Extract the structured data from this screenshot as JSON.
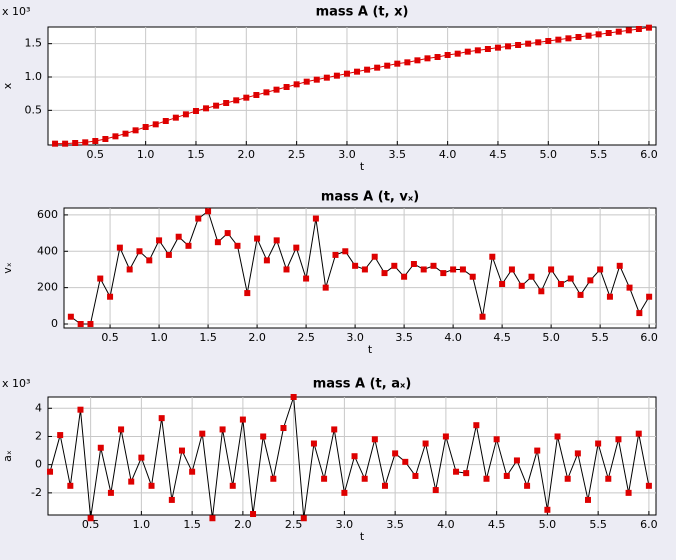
{
  "chart_data": [
    {
      "type": "line",
      "title": "mass A (t, x)",
      "xlabel": "t",
      "ylabel": "x",
      "multiplier": "x 10³",
      "x": [
        0.1,
        0.2,
        0.3,
        0.4,
        0.5,
        0.6,
        0.7,
        0.8,
        0.9,
        1.0,
        1.1,
        1.2,
        1.3,
        1.4,
        1.5,
        1.6,
        1.7,
        1.8,
        1.9,
        2.0,
        2.1,
        2.2,
        2.3,
        2.4,
        2.5,
        2.6,
        2.7,
        2.8,
        2.9,
        3.0,
        3.1,
        3.2,
        3.3,
        3.4,
        3.5,
        3.6,
        3.7,
        3.8,
        3.9,
        4.0,
        4.1,
        4.2,
        4.3,
        4.4,
        4.5,
        4.6,
        4.7,
        4.8,
        4.9,
        5.0,
        5.1,
        5.2,
        5.3,
        5.4,
        5.5,
        5.6,
        5.7,
        5.8,
        5.9,
        6.0
      ],
      "values": [
        0,
        0,
        0.01,
        0.02,
        0.04,
        0.07,
        0.11,
        0.15,
        0.2,
        0.25,
        0.29,
        0.34,
        0.39,
        0.44,
        0.49,
        0.53,
        0.57,
        0.61,
        0.65,
        0.69,
        0.73,
        0.77,
        0.81,
        0.85,
        0.89,
        0.93,
        0.96,
        0.99,
        1.02,
        1.05,
        1.08,
        1.11,
        1.14,
        1.17,
        1.2,
        1.22,
        1.25,
        1.28,
        1.3,
        1.33,
        1.35,
        1.38,
        1.4,
        1.42,
        1.44,
        1.46,
        1.48,
        1.5,
        1.52,
        1.54,
        1.56,
        1.58,
        1.6,
        1.62,
        1.64,
        1.66,
        1.68,
        1.7,
        1.72,
        1.74
      ],
      "marker_color": "#dd0000",
      "line_color": "#dd0000",
      "xlim": [
        0.03,
        6.07
      ],
      "ylim": [
        -0.02,
        1.75
      ],
      "xticks": [
        0.5,
        {
          "value": 1,
          "label": "1.0"
        },
        1.5,
        {
          "value": 2,
          "label": "2.0"
        },
        2.5,
        {
          "value": 3,
          "label": "3.0"
        },
        3.5,
        {
          "value": 4,
          "label": "4.0"
        },
        4.5,
        {
          "value": 5,
          "label": "5.0"
        },
        5.5,
        {
          "value": 6,
          "label": "6.0"
        }
      ],
      "yticks": [
        0.5,
        {
          "value": 1,
          "label": "1.0"
        },
        1.5
      ],
      "grid": true
    },
    {
      "type": "line",
      "title": "mass A (t, vₓ)",
      "xlabel": "t",
      "ylabel": "vₓ",
      "x": [
        0.1,
        0.2,
        0.3,
        0.4,
        0.5,
        0.6,
        0.7,
        0.8,
        0.9,
        1.0,
        1.1,
        1.2,
        1.3,
        1.4,
        1.5,
        1.6,
        1.7,
        1.8,
        1.9,
        2.0,
        2.1,
        2.2,
        2.3,
        2.4,
        2.5,
        2.6,
        2.7,
        2.8,
        2.9,
        3.0,
        3.1,
        3.2,
        3.3,
        3.4,
        3.5,
        3.6,
        3.7,
        3.8,
        3.9,
        4.0,
        4.1,
        4.2,
        4.3,
        4.4,
        4.5,
        4.6,
        4.7,
        4.8,
        4.9,
        5.0,
        5.1,
        5.2,
        5.3,
        5.4,
        5.5,
        5.6,
        5.7,
        5.8,
        5.9,
        6.0
      ],
      "values": [
        40,
        0,
        0,
        250,
        150,
        420,
        300,
        400,
        350,
        460,
        380,
        480,
        430,
        580,
        620,
        450,
        500,
        430,
        170,
        470,
        350,
        460,
        300,
        420,
        250,
        580,
        200,
        380,
        400,
        320,
        300,
        370,
        280,
        320,
        260,
        330,
        300,
        320,
        280,
        300,
        300,
        260,
        40,
        370,
        220,
        300,
        210,
        260,
        180,
        300,
        220,
        250,
        160,
        240,
        300,
        150,
        320,
        200,
        60,
        150
      ],
      "marker_color": "#dd0000",
      "line_color": "#000000",
      "xlim": [
        0.03,
        6.07
      ],
      "ylim": [
        -22,
        638
      ],
      "xticks": [
        0.5,
        {
          "value": 1,
          "label": "1.0"
        },
        1.5,
        {
          "value": 2,
          "label": "2.0"
        },
        2.5,
        {
          "value": 3,
          "label": "3.0"
        },
        3.5,
        {
          "value": 4,
          "label": "4.0"
        },
        4.5,
        {
          "value": 5,
          "label": "5.0"
        },
        5.5,
        {
          "value": 6,
          "label": "6.0"
        }
      ],
      "yticks": [
        0,
        200,
        400,
        600
      ],
      "grid": true
    },
    {
      "type": "line",
      "title": "mass A (t, aₓ)",
      "xlabel": "t",
      "ylabel": "aₓ",
      "multiplier": "x 10³",
      "x": [
        0.1,
        0.2,
        0.3,
        0.4,
        0.5,
        0.6,
        0.7,
        0.8,
        0.9,
        1.0,
        1.1,
        1.2,
        1.3,
        1.4,
        1.5,
        1.6,
        1.7,
        1.8,
        1.9,
        2.0,
        2.1,
        2.2,
        2.3,
        2.4,
        2.5,
        2.6,
        2.7,
        2.8,
        2.9,
        3.0,
        3.1,
        3.2,
        3.3,
        3.4,
        3.5,
        3.6,
        3.7,
        3.8,
        3.9,
        4.0,
        4.1,
        4.2,
        4.3,
        4.4,
        4.5,
        4.6,
        4.7,
        4.8,
        4.9,
        5.0,
        5.1,
        5.2,
        5.3,
        5.4,
        5.5,
        5.6,
        5.7,
        5.8,
        5.9,
        6.0
      ],
      "values": [
        -0.5,
        2.1,
        -1.5,
        3.9,
        -3.8,
        1.2,
        -2.0,
        2.5,
        -1.2,
        0.5,
        -1.5,
        3.3,
        -2.5,
        1.0,
        -0.5,
        2.2,
        -3.8,
        2.5,
        -1.5,
        3.2,
        -3.5,
        2.0,
        -1.0,
        2.6,
        4.8,
        -3.8,
        1.5,
        -1.0,
        2.5,
        -2.0,
        0.6,
        -1.0,
        1.8,
        -1.5,
        0.8,
        0.2,
        -0.8,
        1.5,
        -1.8,
        2.0,
        -0.5,
        -0.6,
        2.8,
        -1.0,
        1.8,
        -0.8,
        0.3,
        -1.5,
        1.0,
        -3.2,
        2.0,
        -1.0,
        0.8,
        -2.5,
        1.5,
        -1.0,
        1.8,
        -2.0,
        2.2,
        -1.5
      ],
      "marker_color": "#dd0000",
      "line_color": "#000000",
      "xlim": [
        0.08,
        6.07
      ],
      "ylim": [
        -3.57,
        4.8
      ],
      "xticks": [
        0.5,
        {
          "value": 1,
          "label": "1.0"
        },
        1.5,
        {
          "value": 2,
          "label": "2.0"
        },
        2.5,
        {
          "value": 3,
          "label": "3.0"
        },
        3.5,
        {
          "value": 4,
          "label": "4.0"
        },
        4.5,
        {
          "value": 5,
          "label": "5.0"
        },
        5.5,
        {
          "value": 6,
          "label": "6.0"
        }
      ],
      "yticks": [
        -2,
        0,
        2,
        4
      ],
      "grid": true
    }
  ]
}
